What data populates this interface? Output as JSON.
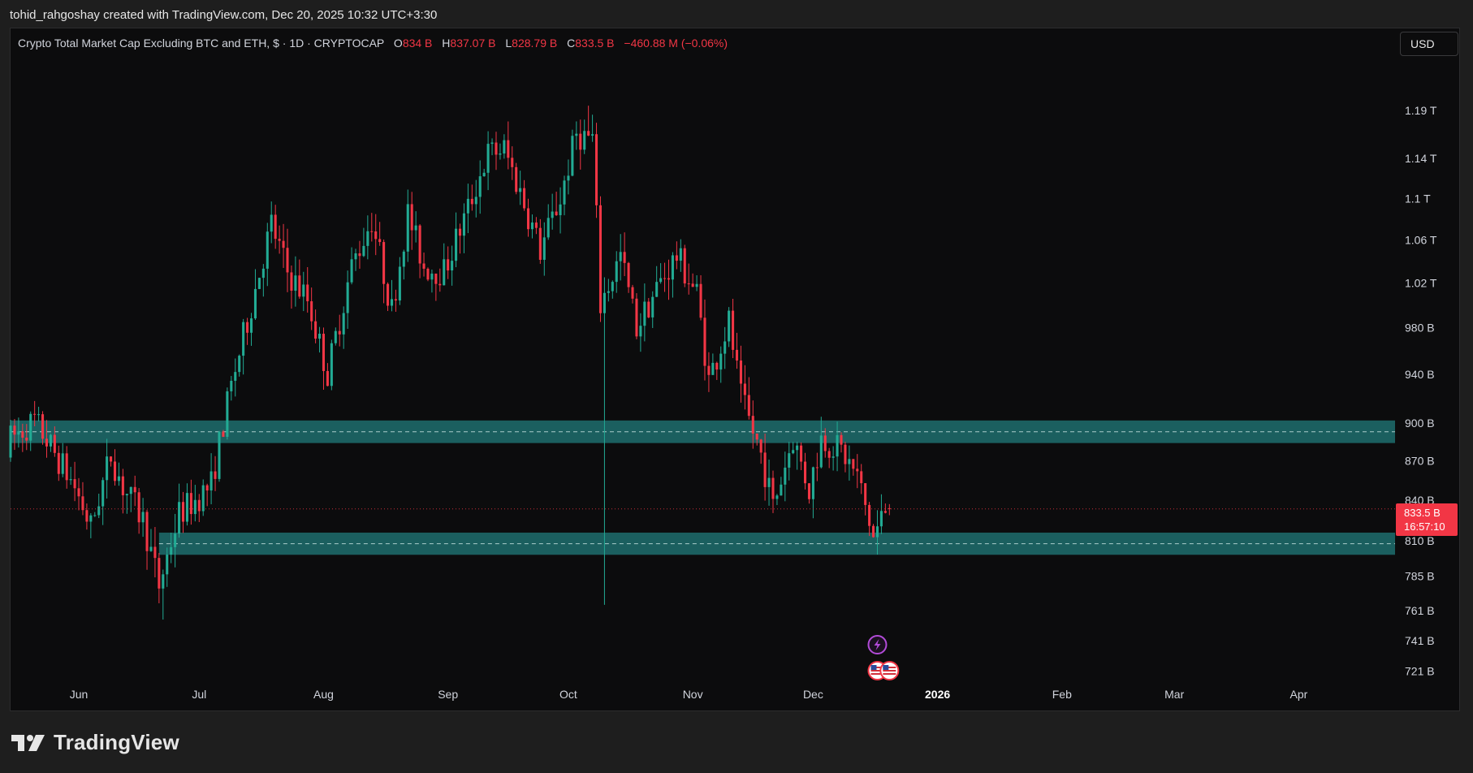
{
  "header": {
    "attribution": "tohid_rahgoshay created with TradingView.com, Dec 20, 2025 10:32 UTC+3:30"
  },
  "legend": {
    "title": "Crypto Total Market Cap Excluding BTC and ETH, $ · 1D · CRYPTOCAP",
    "open_key": "O",
    "open": "834 B",
    "high_key": "H",
    "high": "837.07 B",
    "low_key": "L",
    "low": "828.79 B",
    "close_key": "C",
    "close": "833.5 B",
    "change": "−460.88 M (−0.06%)"
  },
  "toolbar": {
    "currency_label": "USD"
  },
  "price_tag": {
    "price": "833.5 B",
    "countdown": "16:57:10"
  },
  "footer": {
    "brand": "TradingView"
  },
  "colors": {
    "up": "#22ab94",
    "down": "#f23645",
    "zone_fill": "#1e6e6f",
    "background": "#0c0c0d"
  },
  "chart_data": {
    "type": "candlestick",
    "symbol": "CRYPTOCAP",
    "timeframe": "1D",
    "y_scale": "log",
    "ylim": [
      714,
      1225
    ],
    "y_ticks": [
      {
        "value": 1190,
        "label": "1.19 T"
      },
      {
        "value": 1140,
        "label": "1.14 T"
      },
      {
        "value": 1100,
        "label": "1.1 T"
      },
      {
        "value": 1060,
        "label": "1.06 T"
      },
      {
        "value": 1020,
        "label": "1.02 T"
      },
      {
        "value": 980,
        "label": "980 B"
      },
      {
        "value": 940,
        "label": "940 B"
      },
      {
        "value": 900,
        "label": "900 B"
      },
      {
        "value": 870,
        "label": "870 B"
      },
      {
        "value": 840,
        "label": "840 B"
      },
      {
        "value": 810,
        "label": "810 B"
      },
      {
        "value": 785,
        "label": "785 B"
      },
      {
        "value": 761,
        "label": "761 B"
      },
      {
        "value": 741,
        "label": "741 B"
      },
      {
        "value": 721,
        "label": "721 B"
      }
    ],
    "x_start": "2025-05-15",
    "x_end": "2026-04-25",
    "x_ticks": [
      {
        "date": "2025-06-01",
        "label": "Jun",
        "bold": false
      },
      {
        "date": "2025-07-01",
        "label": "Jul",
        "bold": false
      },
      {
        "date": "2025-08-01",
        "label": "Aug",
        "bold": false
      },
      {
        "date": "2025-09-01",
        "label": "Sep",
        "bold": false
      },
      {
        "date": "2025-10-01",
        "label": "Oct",
        "bold": false
      },
      {
        "date": "2025-11-01",
        "label": "Nov",
        "bold": false
      },
      {
        "date": "2025-12-01",
        "label": "Dec",
        "bold": false
      },
      {
        "date": "2026-01-01",
        "label": "2026",
        "bold": true
      },
      {
        "date": "2026-02-01",
        "label": "Feb",
        "bold": false
      },
      {
        "date": "2026-03-01",
        "label": "Mar",
        "bold": false
      },
      {
        "date": "2026-04-01",
        "label": "Apr",
        "bold": false
      }
    ],
    "zones": [
      {
        "from_date": "2025-05-15",
        "y_low": 884,
        "y_high": 902
      },
      {
        "from_date": "2025-06-21",
        "y_low": 800,
        "y_high": 816
      }
    ],
    "last_price": 833.5,
    "events": [
      {
        "date": "2025-12-17",
        "icon": "lightning-icon",
        "row": 1
      },
      {
        "date": "2025-12-17",
        "icon": "us-flag-icon",
        "row": 2
      },
      {
        "date": "2025-12-20",
        "icon": "us-flag-icon",
        "row": 2
      }
    ],
    "anchors": [
      [
        "2025-05-15",
        885
      ],
      [
        "2025-05-22",
        902
      ],
      [
        "2025-06-01",
        850
      ],
      [
        "2025-06-05",
        820
      ],
      [
        "2025-06-10",
        875
      ],
      [
        "2025-06-13",
        850
      ],
      [
        "2025-06-18",
        825
      ],
      [
        "2025-06-22",
        778
      ],
      [
        "2025-06-27",
        830
      ],
      [
        "2025-07-01",
        840
      ],
      [
        "2025-07-05",
        852
      ],
      [
        "2025-07-10",
        930
      ],
      [
        "2025-07-15",
        1000
      ],
      [
        "2025-07-20",
        1075
      ],
      [
        "2025-07-24",
        1030
      ],
      [
        "2025-07-29",
        1005
      ],
      [
        "2025-08-03",
        940
      ],
      [
        "2025-08-09",
        1035
      ],
      [
        "2025-08-14",
        1080
      ],
      [
        "2025-08-19",
        995
      ],
      [
        "2025-08-23",
        1085
      ],
      [
        "2025-08-27",
        1035
      ],
      [
        "2025-09-01",
        1030
      ],
      [
        "2025-09-07",
        1090
      ],
      [
        "2025-09-12",
        1145
      ],
      [
        "2025-09-16",
        1150
      ],
      [
        "2025-09-21",
        1095
      ],
      [
        "2025-09-25",
        1050
      ],
      [
        "2025-09-30",
        1100
      ],
      [
        "2025-10-04",
        1165
      ],
      [
        "2025-10-08",
        1160
      ],
      [
        "2025-10-10",
        1000
      ],
      [
        "2025-10-15",
        1045
      ],
      [
        "2025-10-19",
        980
      ],
      [
        "2025-10-24",
        1015
      ],
      [
        "2025-10-29",
        1045
      ],
      [
        "2025-11-03",
        1010
      ],
      [
        "2025-11-06",
        935
      ],
      [
        "2025-11-11",
        985
      ],
      [
        "2025-11-14",
        920
      ],
      [
        "2025-11-19",
        875
      ],
      [
        "2025-11-22",
        835
      ],
      [
        "2025-11-27",
        888
      ],
      [
        "2025-12-01",
        848
      ],
      [
        "2025-12-04",
        888
      ],
      [
        "2025-12-09",
        878
      ],
      [
        "2025-12-13",
        858
      ],
      [
        "2025-12-17",
        812
      ],
      [
        "2025-12-20",
        833.5
      ]
    ],
    "wick_extremes": [
      {
        "date": "2025-06-22",
        "low": 755
      },
      {
        "date": "2025-10-10",
        "low": 765
      },
      {
        "date": "2025-10-06",
        "high": 1195
      }
    ]
  }
}
